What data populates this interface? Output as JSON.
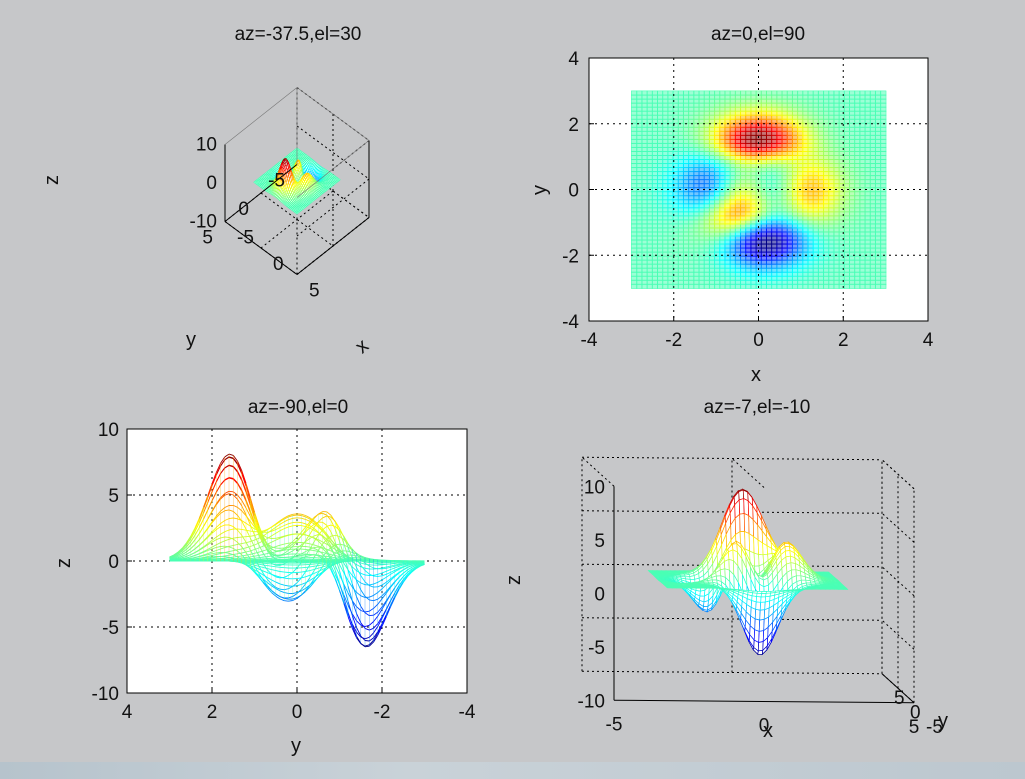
{
  "figure": {
    "background": "#c6c7c9",
    "colormap": "jet",
    "surface_function": "peaks",
    "x_range": [
      -3,
      3
    ],
    "y_range": [
      -3,
      3
    ]
  },
  "chart_data": [
    {
      "type": "mesh-3d",
      "id": "view1",
      "title": "az=-37.5,el=30",
      "view": {
        "az": -37.5,
        "el": 30
      },
      "xlabel": "x",
      "ylabel": "y",
      "zlabel": "z",
      "xlim": [
        -5,
        5
      ],
      "ylim": [
        -5,
        5
      ],
      "zlim": [
        -10,
        10
      ],
      "xticks": [
        {
          "v": -5,
          "label": "-5"
        },
        {
          "v": 0,
          "label": "0"
        },
        {
          "v": 5,
          "label": "5"
        }
      ],
      "yticks": [
        {
          "v": -5,
          "label": "-5"
        },
        {
          "v": 0,
          "label": "0"
        },
        {
          "v": 5,
          "label": "5"
        }
      ],
      "zticks": [
        {
          "v": -10,
          "label": "-10"
        },
        {
          "v": 0,
          "label": "0"
        },
        {
          "v": 10,
          "label": "10"
        }
      ],
      "grid": true
    },
    {
      "type": "mesh-top-view",
      "id": "view2",
      "title": "az=0,el=90",
      "view": {
        "az": 0,
        "el": 90
      },
      "xlabel": "x",
      "ylabel": "y",
      "xlim": [
        -4,
        4
      ],
      "ylim": [
        -4,
        4
      ],
      "xticks": [
        {
          "v": -4,
          "label": "-4"
        },
        {
          "v": -2,
          "label": "-2"
        },
        {
          "v": 0,
          "label": "0"
        },
        {
          "v": 2,
          "label": "2"
        },
        {
          "v": 4,
          "label": "4"
        }
      ],
      "yticks": [
        {
          "v": -4,
          "label": "-4"
        },
        {
          "v": -2,
          "label": "-2"
        },
        {
          "v": 0,
          "label": "0"
        },
        {
          "v": 2,
          "label": "2"
        },
        {
          "v": 4,
          "label": "4"
        }
      ],
      "grid": true
    },
    {
      "type": "mesh-side-view",
      "id": "view3",
      "title": "az=-90,el=0",
      "view": {
        "az": -90,
        "el": 0
      },
      "xlabel": "y",
      "ylabel": "z",
      "xlim": [
        4,
        -4
      ],
      "ylim": [
        -10,
        10
      ],
      "xticks": [
        {
          "v": 4,
          "label": "4"
        },
        {
          "v": 2,
          "label": "2"
        },
        {
          "v": 0,
          "label": "0"
        },
        {
          "v": -2,
          "label": "-2"
        },
        {
          "v": -4,
          "label": "-4"
        }
      ],
      "yticks": [
        {
          "v": 10,
          "label": "10"
        },
        {
          "v": 5,
          "label": "5"
        },
        {
          "v": 0,
          "label": "0"
        },
        {
          "v": -5,
          "label": "-5"
        },
        {
          "v": -10,
          "label": "-10"
        }
      ],
      "grid": true
    },
    {
      "type": "mesh-3d",
      "id": "view4",
      "title": "az=-7,el=-10",
      "view": {
        "az": -7,
        "el": -10
      },
      "xlabel": "x",
      "ylabel": "y",
      "zlabel": "z",
      "xlim": [
        -5,
        5
      ],
      "ylim": [
        -5,
        5
      ],
      "zlim": [
        -10,
        10
      ],
      "xticks": [
        {
          "v": -5,
          "label": "-5"
        },
        {
          "v": 0,
          "label": "0"
        },
        {
          "v": 5,
          "label": "5"
        }
      ],
      "yticks": [
        {
          "v": -5,
          "label": "-5"
        },
        {
          "v": 0,
          "label": "0"
        },
        {
          "v": 5,
          "label": "5"
        }
      ],
      "zticks": [
        {
          "v": -10,
          "label": "-10"
        },
        {
          "v": -5,
          "label": "-5"
        },
        {
          "v": 0,
          "label": "0"
        },
        {
          "v": 5,
          "label": "5"
        },
        {
          "v": 10,
          "label": "10"
        }
      ],
      "grid": true
    }
  ]
}
